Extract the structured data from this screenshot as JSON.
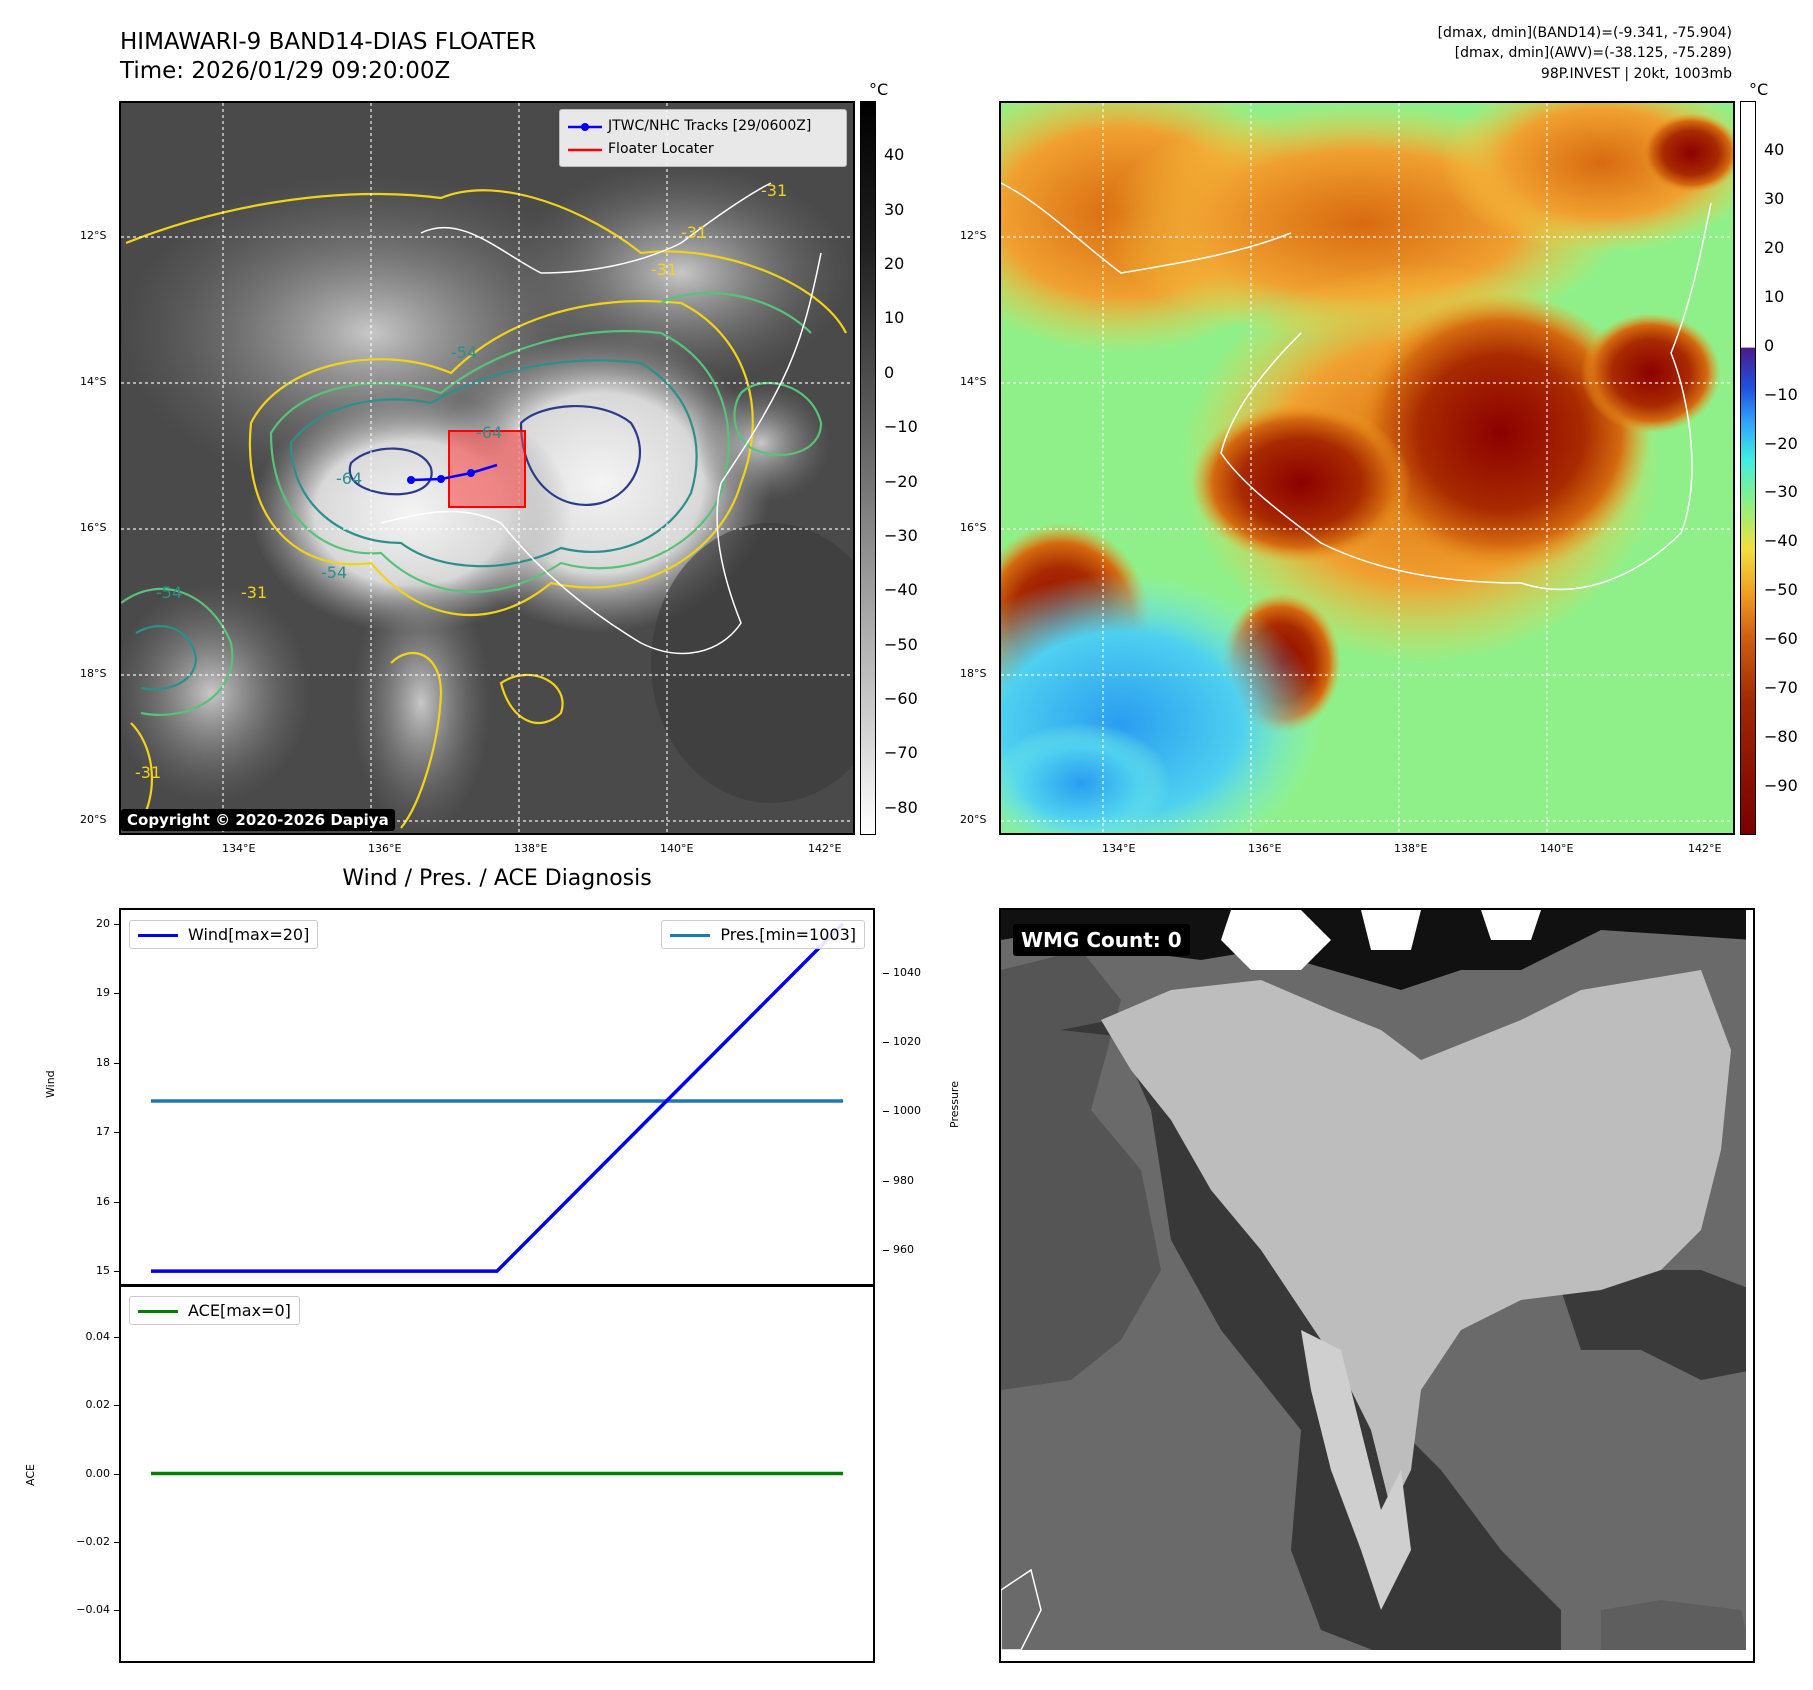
{
  "header": {
    "title_line1": "HIMAWARI-9 BAND14-DIAS FLOATER",
    "title_line2": "Time: 2026/01/29 09:20:00Z",
    "info_line1": "[dmax, dmin](BAND14)=(-9.341, -75.904)",
    "info_line2": "[dmax, dmin](AWV)=(-38.125, -75.289)",
    "info_line3": "98P.INVEST | 20kt, 1003mb"
  },
  "maps": {
    "lat_labels": [
      "12°S",
      "14°S",
      "16°S",
      "18°S",
      "20°S"
    ],
    "lon_labels": [
      "134°E",
      "136°E",
      "138°E",
      "140°E",
      "142°E"
    ],
    "copyright": "Copyright © 2020-2026 Dapiya",
    "legend": {
      "tracks_label": "JTWC/NHC Tracks [29/0600Z]",
      "floater_label": "Floater Locater",
      "tracks_color": "#0000ff",
      "floater_color": "#ff0000"
    },
    "contour_labels": [
      "-31",
      "-31",
      "-31",
      "-54",
      "-64",
      "-64",
      "-54",
      "-54",
      "-31",
      "-31"
    ],
    "colorbar_left": {
      "unit": "°C",
      "ticks": [
        "40",
        "30",
        "20",
        "10",
        "0",
        "−10",
        "−20",
        "−30",
        "−40",
        "−50",
        "−60",
        "−70",
        "−80"
      ]
    },
    "colorbar_right": {
      "unit": "°C",
      "ticks": [
        "40",
        "30",
        "20",
        "10",
        "0",
        "−10",
        "−20",
        "−30",
        "−40",
        "−50",
        "−60",
        "−70",
        "−80",
        "−90"
      ]
    }
  },
  "diagnosis": {
    "title": "Wind / Pres. / ACE Diagnosis",
    "wind_ylabel": "Wind",
    "pres_ylabel": "Pressure",
    "ace_ylabel": "ACE",
    "wind_legend": "Wind[max=20]",
    "pres_legend": "Pres.[min=1003]",
    "ace_legend": "ACE[max=0]",
    "wind_ticks": [
      "20",
      "19",
      "18",
      "17",
      "16",
      "15"
    ],
    "pres_ticks": [
      "1040",
      "1020",
      "1000",
      "980",
      "960"
    ],
    "ace_ticks": [
      "0.04",
      "0.02",
      "0.00",
      "−0.02",
      "−0.04"
    ]
  },
  "wmg": {
    "label": "WMG Count: 0"
  },
  "chart_data": [
    {
      "type": "line",
      "title": "Wind / Pres. / ACE Diagnosis",
      "x": [
        0,
        1,
        2
      ],
      "series": [
        {
          "name": "Wind[max=20]",
          "axis": "left",
          "values": [
            15,
            15,
            20
          ],
          "color": "#0000ee"
        },
        {
          "name": "Pres.[min=1003]",
          "axis": "right",
          "values": [
            1003,
            1003,
            1003
          ],
          "color": "#1f77b4"
        }
      ],
      "ylabel": "Wind",
      "y2label": "Pressure",
      "ylim": [
        14.8,
        20.2
      ],
      "y2lim": [
        950,
        1058
      ]
    },
    {
      "type": "line",
      "x": [
        0,
        1,
        2
      ],
      "series": [
        {
          "name": "ACE[max=0]",
          "values": [
            0,
            0,
            0
          ],
          "color": "#008000"
        }
      ],
      "ylabel": "ACE",
      "ylim": [
        -0.055,
        0.055
      ]
    }
  ]
}
